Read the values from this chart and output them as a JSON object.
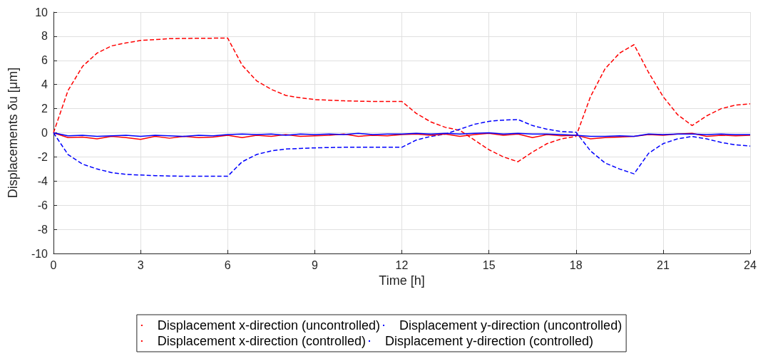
{
  "chart_data": {
    "type": "line",
    "xlabel": "Time [h]",
    "ylabel": "Displacements δu [μm]",
    "x": [
      0,
      0.5,
      1,
      1.5,
      2,
      2.5,
      3,
      3.5,
      4,
      4.5,
      5,
      5.5,
      6,
      6.5,
      7,
      7.5,
      8,
      8.5,
      9,
      9.5,
      10,
      10.5,
      11,
      11.5,
      12,
      12.5,
      13,
      13.5,
      14,
      14.5,
      15,
      15.5,
      16,
      16.5,
      17,
      17.5,
      18,
      18.5,
      19,
      19.5,
      20,
      20.5,
      21,
      21.5,
      22,
      22.5,
      23,
      23.5,
      24
    ],
    "series": [
      {
        "name": "Displacement x-direction (uncontrolled)",
        "color": "#ff0000",
        "line_style": "dashed",
        "values": [
          0,
          3.5,
          5.5,
          6.6,
          7.2,
          7.45,
          7.65,
          7.72,
          7.8,
          7.82,
          7.83,
          7.84,
          7.85,
          5.6,
          4.3,
          3.6,
          3.1,
          2.9,
          2.75,
          2.7,
          2.65,
          2.62,
          2.6,
          2.6,
          2.6,
          1.6,
          0.9,
          0.45,
          0.2,
          -0.6,
          -1.4,
          -2.0,
          -2.4,
          -1.6,
          -0.9,
          -0.5,
          -0.3,
          3.0,
          5.3,
          6.6,
          7.3,
          5.0,
          3.0,
          1.5,
          0.6,
          1.4,
          2.0,
          2.3,
          2.4
        ]
      },
      {
        "name": "Displacement y-direction (uncontrolled)",
        "color": "#0000ff",
        "line_style": "dashed",
        "values": [
          0,
          -1.8,
          -2.6,
          -3.0,
          -3.3,
          -3.45,
          -3.5,
          -3.55,
          -3.58,
          -3.6,
          -3.6,
          -3.6,
          -3.6,
          -2.4,
          -1.8,
          -1.5,
          -1.35,
          -1.3,
          -1.25,
          -1.22,
          -1.2,
          -1.2,
          -1.2,
          -1.2,
          -1.2,
          -0.6,
          -0.3,
          -0.1,
          0.3,
          0.7,
          0.95,
          1.05,
          1.1,
          0.6,
          0.3,
          0.1,
          0.05,
          -1.5,
          -2.5,
          -3.0,
          -3.4,
          -1.7,
          -0.9,
          -0.5,
          -0.3,
          -0.5,
          -0.8,
          -1.0,
          -1.1
        ]
      },
      {
        "name": "Displacement x-direction (controlled)",
        "color": "#ff0000",
        "line_style": "solid",
        "values": [
          0,
          -0.4,
          -0.35,
          -0.5,
          -0.3,
          -0.4,
          -0.55,
          -0.3,
          -0.45,
          -0.3,
          -0.4,
          -0.35,
          -0.2,
          -0.4,
          -0.2,
          -0.3,
          -0.15,
          -0.3,
          -0.25,
          -0.2,
          -0.1,
          -0.3,
          -0.2,
          -0.25,
          -0.15,
          -0.1,
          -0.2,
          -0.1,
          -0.3,
          -0.15,
          -0.05,
          -0.2,
          -0.1,
          -0.4,
          -0.15,
          -0.25,
          -0.2,
          -0.5,
          -0.4,
          -0.35,
          -0.3,
          -0.15,
          -0.2,
          -0.1,
          -0.05,
          -0.3,
          -0.2,
          -0.25,
          -0.2
        ]
      },
      {
        "name": "Displacement y-direction (controlled)",
        "color": "#0000ff",
        "line_style": "solid",
        "values": [
          0,
          -0.25,
          -0.2,
          -0.3,
          -0.25,
          -0.2,
          -0.3,
          -0.2,
          -0.25,
          -0.3,
          -0.2,
          -0.25,
          -0.15,
          -0.1,
          -0.15,
          -0.1,
          -0.2,
          -0.1,
          -0.15,
          -0.1,
          -0.15,
          -0.05,
          -0.15,
          -0.1,
          -0.1,
          -0.05,
          -0.1,
          -0.05,
          -0.1,
          -0.05,
          0,
          -0.1,
          -0.05,
          -0.1,
          -0.1,
          -0.15,
          -0.2,
          -0.3,
          -0.3,
          -0.25,
          -0.3,
          -0.1,
          -0.15,
          -0.1,
          -0.1,
          -0.15,
          -0.1,
          -0.15,
          -0.15
        ]
      }
    ],
    "xlim": [
      0,
      24
    ],
    "xticks": [
      0,
      3,
      6,
      9,
      12,
      15,
      18,
      21,
      24
    ],
    "ylim": [
      -10,
      10
    ],
    "yticks": [
      -10,
      -8,
      -6,
      -4,
      -2,
      0,
      2,
      4,
      6,
      8,
      10
    ],
    "grid": true,
    "legend": "bottom",
    "marker": "none"
  }
}
